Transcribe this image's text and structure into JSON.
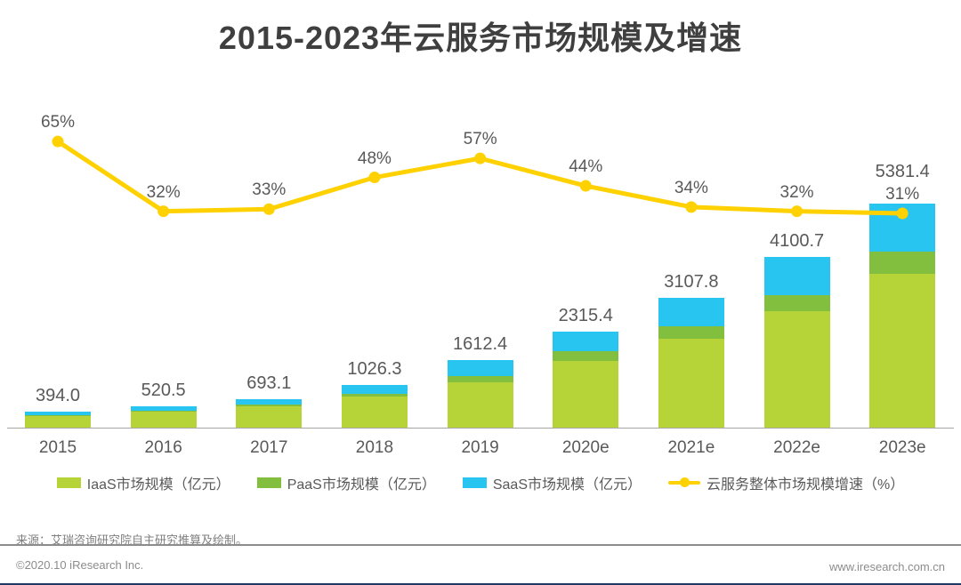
{
  "title": "2015-2023年云服务市场规模及增速",
  "source_note": "来源：艾瑞咨询研究院自主研究推算及绘制。",
  "footer": {
    "copyright": "©2020.10 iResearch Inc.",
    "website": "www.iresearch.com.cn"
  },
  "colors": {
    "iaas": "#b6d437",
    "paas": "#82bf3e",
    "saas": "#27c5f0",
    "growth": "#ffd100",
    "title_text": "#3f3f3f",
    "label_text": "#595959",
    "axis": "#a6a6a6",
    "footer_text": "#8c8c8c",
    "bottom_bar": "#1f3864"
  },
  "legend": [
    {
      "label": "IaaS市场规模（亿元）",
      "type": "swatch",
      "color_key": "iaas"
    },
    {
      "label": "PaaS市场规模（亿元）",
      "type": "swatch",
      "color_key": "paas"
    },
    {
      "label": "SaaS市场规模（亿元）",
      "type": "swatch",
      "color_key": "saas"
    },
    {
      "label": "云服务整体市场规模增速（%）",
      "type": "line",
      "color_key": "growth"
    }
  ],
  "chart_data": {
    "type": "bar",
    "subtype": "stacked-bars-with-line",
    "title": "2015-2023年云服务市场规模及增速",
    "categories": [
      "2015",
      "2016",
      "2017",
      "2018",
      "2019",
      "2020e",
      "2021e",
      "2022e",
      "2023e"
    ],
    "bar_totals": [
      394.0,
      520.5,
      693.1,
      1026.3,
      1612.4,
      2315.4,
      3107.8,
      4100.7,
      5381.4
    ],
    "bar_total_labels": [
      "394.0",
      "520.5",
      "693.1",
      "1026.3",
      "1612.4",
      "2315.4",
      "3107.8",
      "4100.7",
      "5381.4"
    ],
    "series": [
      {
        "name": "IaaS市场规模（亿元）",
        "color_key": "iaas",
        "values": [
          287.0,
          380.5,
          510.1,
          741.3,
          1088.4,
          1600.4,
          2139.8,
          2789.7,
          3690.4
        ]
      },
      {
        "name": "PaaS市场规模（亿元）",
        "color_key": "paas",
        "values": [
          12.0,
          25.0,
          45.0,
          60.0,
          157.0,
          240.0,
          297.0,
          395.0,
          527.0
        ]
      },
      {
        "name": "SaaS市场规模（亿元）",
        "color_key": "saas",
        "values": [
          95.0,
          115.0,
          138.0,
          225.0,
          367.0,
          475.0,
          671.0,
          916.0,
          1164.0
        ]
      }
    ],
    "segment_values_estimated_from_pixels": true,
    "line_series": {
      "name": "云服务整体市场规模增速（%）",
      "color_key": "growth",
      "values": [
        65,
        32,
        33,
        48,
        57,
        44,
        34,
        32,
        31
      ],
      "labels": [
        "65%",
        "32%",
        "33%",
        "48%",
        "57%",
        "44%",
        "34%",
        "32%",
        "31%"
      ]
    },
    "ylabel": "亿元",
    "y2label": "%",
    "grid": false,
    "legend_position": "bottom"
  }
}
